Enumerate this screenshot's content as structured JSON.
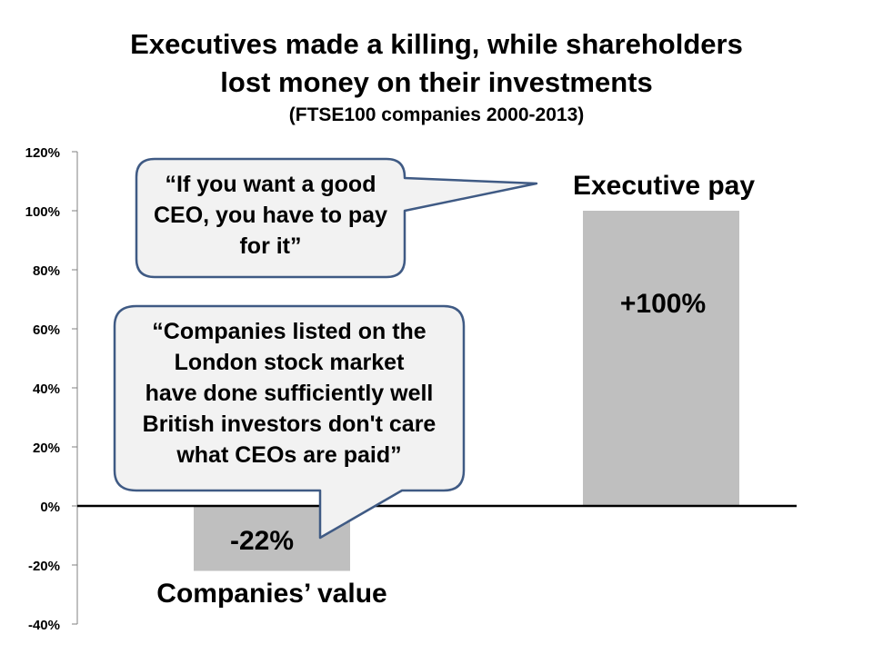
{
  "chart_data": {
    "type": "bar",
    "title": "Executives made a killing, while shareholders lost money on their investments",
    "title_lines": [
      "Executives made a killing, while shareholders",
      "lost money on their investments"
    ],
    "subtitle": "(FTSE100 companies 2000-2013)",
    "categories": [
      "Companies’ value",
      "Executive pay"
    ],
    "values": [
      -22,
      100
    ],
    "data_labels": [
      "-22%",
      "+100%"
    ],
    "ylim": [
      -40,
      120
    ],
    "yticks": [
      -40,
      -20,
      0,
      20,
      40,
      60,
      80,
      100,
      120
    ],
    "ytick_labels": [
      "-40%",
      "-20%",
      "0%",
      "20%",
      "40%",
      "60%",
      "80%",
      "100%",
      "120%"
    ],
    "xlabel": "",
    "ylabel": "",
    "grid": false,
    "bar_color": "#bfbfbf",
    "annotations": [
      "“If you want a good CEO, you have to pay for it”",
      "“Companies listed on the London stock market have done sufficiently well British investors don't care what CEOs are paid”"
    ],
    "annotation_lines": [
      [
        "“If you want a good",
        "CEO, you have to pay",
        "for it”"
      ],
      [
        "“Companies listed on the",
        "London stock market",
        "have done sufficiently well",
        "British investors don't care",
        "what CEOs are paid”"
      ]
    ]
  },
  "colors": {
    "bubble_fill": "#f2f2f2",
    "bubble_stroke": "#3f5a84",
    "axis": "#000000",
    "tick": "#808080"
  }
}
